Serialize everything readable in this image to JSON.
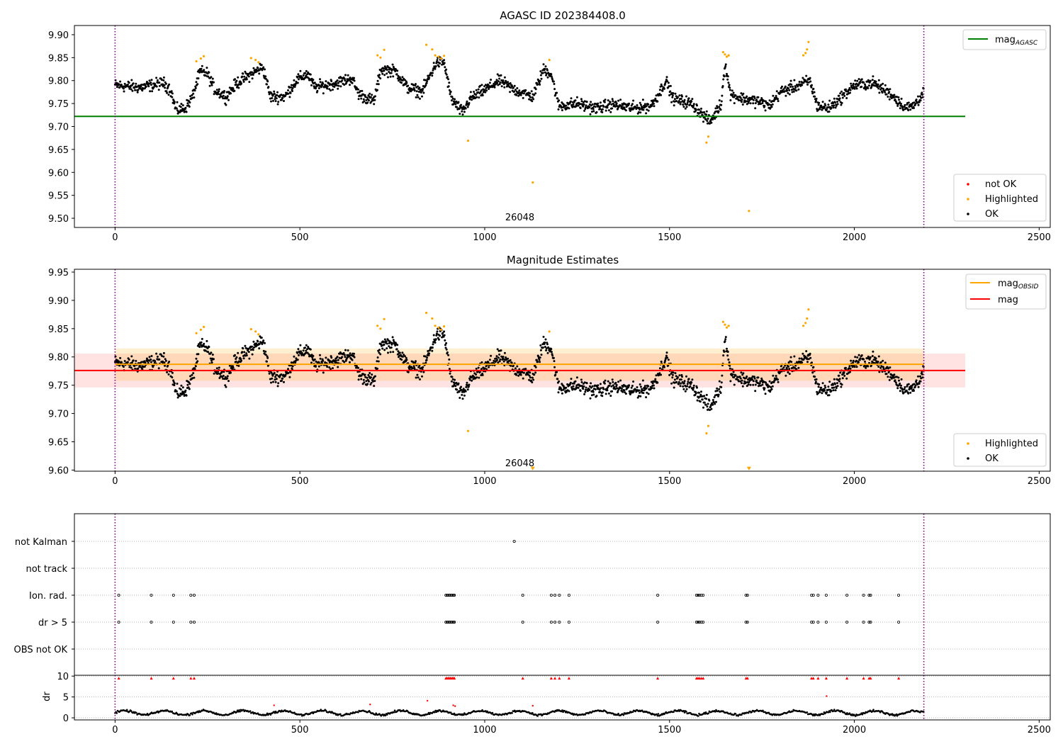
{
  "chart_data": [
    {
      "type": "scatter",
      "title": "AGASC ID 202384408.0",
      "xlabel": "",
      "ylabel": "",
      "xlim": [
        -110,
        2530
      ],
      "ylim": [
        9.48,
        9.92
      ],
      "x_ticks": [
        0,
        500,
        1000,
        1500,
        2000,
        2500
      ],
      "y_ticks": [
        9.5,
        9.55,
        9.6,
        9.65,
        9.7,
        9.75,
        9.8,
        9.85,
        9.9
      ],
      "grid": false,
      "obsid_boundaries": [
        0,
        2188
      ],
      "obsid_labels": [
        {
          "x": 1095,
          "y": 9.502,
          "text": "26048"
        }
      ],
      "reference_lines": [
        {
          "name": "mag",
          "sub": "AGASC",
          "value": 9.722,
          "x_range": [
            -110,
            2300
          ],
          "color": "#008000"
        }
      ],
      "legend_upper": {
        "placement": "top-right",
        "entries": [
          {
            "name": "mag",
            "sub": "AGASC",
            "color": "#008000"
          }
        ]
      },
      "legend_lower": {
        "placement": "bottom-right",
        "entries": [
          {
            "name": "not OK",
            "color": "#ff0000"
          },
          {
            "name": "Highlighted",
            "color": "#ffa500"
          },
          {
            "name": "OK",
            "color": "#000000"
          }
        ]
      },
      "series": [
        {
          "name": "OK",
          "color": "#000000",
          "segments": [
            [
              0,
              9.79
            ],
            [
              70,
              9.785
            ],
            [
              130,
              9.795
            ],
            [
              150,
              9.78
            ],
            [
              165,
              9.735
            ],
            [
              190,
              9.74
            ],
            [
              210,
              9.765
            ],
            [
              230,
              9.82
            ],
            [
              250,
              9.815
            ],
            [
              270,
              9.78
            ],
            [
              300,
              9.765
            ],
            [
              330,
              9.795
            ],
            [
              380,
              9.82
            ],
            [
              400,
              9.83
            ],
            [
              420,
              9.765
            ],
            [
              460,
              9.765
            ],
            [
              490,
              9.8
            ],
            [
              520,
              9.815
            ],
            [
              540,
              9.785
            ],
            [
              600,
              9.795
            ],
            [
              640,
              9.805
            ],
            [
              660,
              9.77
            ],
            [
              700,
              9.755
            ],
            [
              720,
              9.825
            ],
            [
              760,
              9.82
            ],
            [
              790,
              9.785
            ],
            [
              830,
              9.775
            ],
            [
              870,
              9.84
            ],
            [
              890,
              9.84
            ],
            [
              910,
              9.76
            ],
            [
              940,
              9.73
            ],
            [
              960,
              9.76
            ],
            [
              1000,
              9.78
            ],
            [
              1040,
              9.8
            ],
            [
              1080,
              9.78
            ],
            [
              1130,
              9.765
            ],
            [
              1160,
              9.825
            ],
            [
              1180,
              9.815
            ],
            [
              1200,
              9.745
            ],
            [
              1250,
              9.75
            ],
            [
              1300,
              9.74
            ],
            [
              1350,
              9.748
            ],
            [
              1400,
              9.74
            ],
            [
              1450,
              9.745
            ],
            [
              1470,
              9.77
            ],
            [
              1490,
              9.8
            ],
            [
              1510,
              9.76
            ],
            [
              1560,
              9.75
            ],
            [
              1590,
              9.725
            ],
            [
              1610,
              9.71
            ],
            [
              1640,
              9.75
            ],
            [
              1650,
              9.84
            ],
            [
              1665,
              9.77
            ],
            [
              1700,
              9.76
            ],
            [
              1740,
              9.755
            ],
            [
              1770,
              9.745
            ],
            [
              1800,
              9.775
            ],
            [
              1850,
              9.79
            ],
            [
              1880,
              9.8
            ],
            [
              1900,
              9.745
            ],
            [
              1930,
              9.74
            ],
            [
              1960,
              9.76
            ],
            [
              2000,
              9.79
            ],
            [
              2050,
              9.795
            ],
            [
              2100,
              9.77
            ],
            [
              2140,
              9.74
            ],
            [
              2160,
              9.745
            ],
            [
              2188,
              9.775
            ]
          ]
        },
        {
          "name": "Highlighted",
          "color": "#ffa500",
          "points": [
            [
              220,
              9.842
            ],
            [
              232,
              9.848
            ],
            [
              240,
              9.853
            ],
            [
              368,
              9.849
            ],
            [
              380,
              9.845
            ],
            [
              388,
              9.84
            ],
            [
              710,
              9.855
            ],
            [
              718,
              9.85
            ],
            [
              728,
              9.867
            ],
            [
              842,
              9.878
            ],
            [
              858,
              9.868
            ],
            [
              866,
              9.855
            ],
            [
              875,
              9.852
            ],
            [
              882,
              9.848
            ],
            [
              890,
              9.854
            ],
            [
              955,
              9.669
            ],
            [
              1130,
              9.578
            ],
            [
              1175,
              9.845
            ],
            [
              1600,
              9.665
            ],
            [
              1605,
              9.678
            ],
            [
              1645,
              9.862
            ],
            [
              1650,
              9.857
            ],
            [
              1655,
              9.852
            ],
            [
              1660,
              9.855
            ],
            [
              1715,
              9.516
            ],
            [
              1862,
              9.855
            ],
            [
              1868,
              9.86
            ],
            [
              1872,
              9.868
            ],
            [
              1876,
              9.884
            ]
          ]
        },
        {
          "name": "not OK",
          "color": "#ff0000",
          "points": []
        }
      ]
    },
    {
      "type": "scatter",
      "title": "Magnitude Estimates",
      "xlabel": "",
      "ylabel": "",
      "xlim": [
        -110,
        2530
      ],
      "ylim": [
        9.598,
        9.955
      ],
      "x_ticks": [
        0,
        500,
        1000,
        1500,
        2000,
        2500
      ],
      "y_ticks": [
        9.6,
        9.65,
        9.7,
        9.75,
        9.8,
        9.85,
        9.9,
        9.95
      ],
      "grid": false,
      "obsid_boundaries": [
        0,
        2188
      ],
      "obsid_labels": [
        {
          "x": 1095,
          "y": 9.612,
          "text": "26048"
        }
      ],
      "bands": [
        {
          "lower": 9.746,
          "upper": 9.806,
          "x_range": [
            -110,
            2300
          ],
          "color": "#ff0000",
          "opacity": 0.11
        },
        {
          "lower": 9.758,
          "upper": 9.815,
          "x_range": [
            0,
            2188
          ],
          "color": "#ffa500",
          "opacity": 0.18
        }
      ],
      "reference_lines": [
        {
          "name": "mag",
          "sub": "OBSID",
          "value": 9.787,
          "x_range": [
            0,
            2188
          ],
          "color": "#ffa500"
        },
        {
          "name": "mag",
          "sub": "",
          "value": 9.776,
          "x_range": [
            -110,
            2300
          ],
          "color": "#ff0000"
        }
      ],
      "legend_upper": {
        "placement": "top-right",
        "entries": [
          {
            "name": "mag",
            "sub": "OBSID",
            "color": "#ffa500"
          },
          {
            "name": "mag",
            "sub": "",
            "color": "#ff0000"
          }
        ]
      },
      "legend_lower": {
        "placement": "bottom-right",
        "entries": [
          {
            "name": "Highlighted",
            "color": "#ffa500"
          },
          {
            "name": "OK",
            "color": "#000000"
          }
        ]
      },
      "clipped_markers": [
        [
          1130,
          9.602
        ],
        [
          1715,
          9.602
        ]
      ],
      "series_from": 0
    },
    {
      "type": "scatter",
      "title": "",
      "xlabel": "",
      "ylabel": "",
      "xlim": [
        -110,
        2530
      ],
      "categories": [
        "not Kalman",
        "not track",
        "Ion. rad.",
        "dr > 5",
        "OBS not OK"
      ],
      "grid": true,
      "obsid_boundaries": [
        0,
        2188
      ],
      "flags": {
        "not Kalman": [
          1080
        ],
        "not track": [],
        "Ion. rad.": [
          10,
          98,
          158,
          205,
          214,
          895,
          898,
          901,
          904,
          907,
          910,
          913,
          916,
          918,
          1103,
          1180,
          1190,
          1202,
          1228,
          1468,
          1573,
          1577,
          1581,
          1586,
          1591,
          1707,
          1711,
          1884,
          1889,
          1902,
          1924,
          1980,
          2025,
          2040,
          2044,
          2120
        ],
        "dr > 5": [
          10,
          98,
          158,
          205,
          214,
          895,
          898,
          901,
          904,
          907,
          910,
          913,
          916,
          918,
          1103,
          1180,
          1190,
          1202,
          1228,
          1468,
          1573,
          1577,
          1581,
          1586,
          1591,
          1707,
          1711,
          1884,
          1889,
          1902,
          1924,
          1980,
          2025,
          2040,
          2044,
          2120
        ],
        "OBS not OK": []
      }
    },
    {
      "type": "scatter",
      "title": "",
      "xlabel": "",
      "ylabel": "dr",
      "xlim": [
        -110,
        2530
      ],
      "ylim": [
        -0.5,
        10.2
      ],
      "x_ticks": [
        0,
        500,
        1000,
        1500,
        2000,
        2500
      ],
      "y_ticks": [
        0,
        5,
        10
      ],
      "y_tick_labels": [
        "0",
        "5",
        "10"
      ],
      "grid": true,
      "obsid_boundaries": [
        0,
        2188
      ],
      "dr_level": 1.2,
      "dr_outliers": [
        [
          430,
          3.0
        ],
        [
          690,
          3.2
        ],
        [
          845,
          4.1
        ],
        [
          915,
          3.0
        ],
        [
          920,
          2.8
        ],
        [
          1130,
          2.9
        ],
        [
          1925,
          5.2
        ]
      ],
      "clipped_markers": [
        10,
        98,
        158,
        205,
        214,
        895,
        898,
        901,
        904,
        907,
        910,
        913,
        916,
        918,
        1103,
        1180,
        1190,
        1202,
        1228,
        1468,
        1573,
        1577,
        1581,
        1586,
        1591,
        1707,
        1711,
        1884,
        1889,
        1902,
        1924,
        1980,
        2025,
        2040,
        2044,
        2120
      ]
    }
  ]
}
